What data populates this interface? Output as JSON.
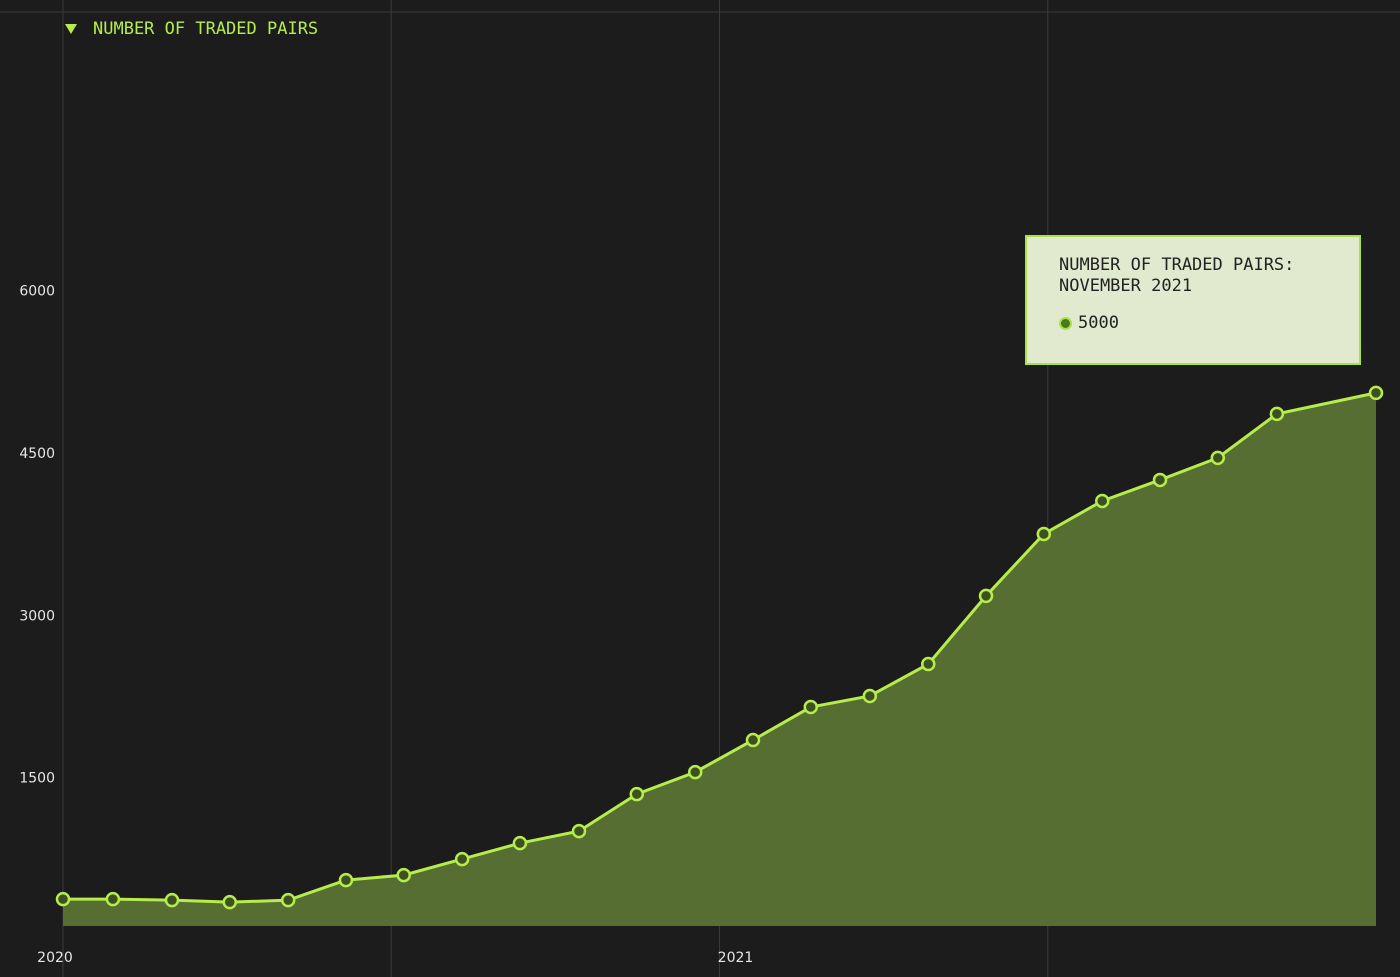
{
  "chart_data": {
    "type": "area",
    "x": [
      2020.0,
      2020.076,
      2020.166,
      2020.254,
      2020.343,
      2020.431,
      2020.519,
      2020.608,
      2020.696,
      2020.786,
      2020.874,
      2020.963,
      2021.051,
      2021.139,
      2021.229,
      2021.318,
      2021.406,
      2021.494,
      2021.583,
      2021.671,
      2021.759,
      2021.849,
      2022.0
    ],
    "series": [
      {
        "name": "NUMBER OF TRADED PAIRS",
        "color": "#b6ec4c",
        "fill": "#566e32",
        "values": [
          388,
          388,
          379,
          360,
          379,
          564,
          610,
          758,
          905,
          1016,
          1358,
          1561,
          1857,
          2162,
          2264,
          2559,
          3188,
          3760,
          4065,
          4259,
          4463,
          4869,
          5063
        ]
      }
    ],
    "xlim": [
      2020,
      2022
    ],
    "xticks": [
      2020,
      2021
    ],
    "xgrid": [
      2020,
      2020.5,
      2021,
      2021.5
    ],
    "ylim": [
      140,
      8580
    ],
    "yticks": [
      1500,
      3000,
      4500,
      6000
    ],
    "tooltip": {
      "title": "NUMBER OF TRADED PAIRS:",
      "date": "NOVEMBER 2021",
      "value": 5000
    }
  }
}
